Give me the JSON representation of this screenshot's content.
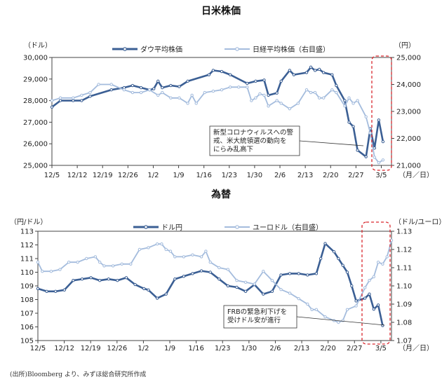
{
  "source_note": "(出所)Bloomberg より、みずほ総合研究所作成",
  "colors": {
    "primary": "#3b5f94",
    "secondary": "#a4bcdd",
    "highlight": "#d9262c",
    "axis": "#444444",
    "callout_bg": "#ffffff"
  },
  "x_axis_suffix": "（月／日）",
  "chart_data": [
    {
      "type": "line",
      "title": "日米株価",
      "left_unit": "（ドル）",
      "right_unit": "（円）",
      "ylim_left": [
        25000,
        30000
      ],
      "ylim_right": [
        21000,
        25000
      ],
      "yticks_left": [
        "25,000",
        "26,000",
        "27,000",
        "28,000",
        "29,000",
        "30,000"
      ],
      "yticks_right": [
        "21,000",
        "22,000",
        "23,000",
        "24,000",
        "25,000"
      ],
      "x_ticks": [
        "12/5",
        "12/12",
        "12/19",
        "12/26",
        "1/2",
        "1/9",
        "1/16",
        "1/23",
        "1/30",
        "2/6",
        "2/13",
        "2/20",
        "2/27",
        "3/5"
      ],
      "x_tick_index": [
        0,
        5,
        10,
        15,
        20,
        25,
        30,
        35,
        40,
        45,
        50,
        55,
        60,
        65
      ],
      "n_points": 66,
      "series": [
        {
          "name": "ダウ平均株価",
          "axis": "left",
          "points": [
            [
              0,
              27700
            ],
            [
              2,
              28000
            ],
            [
              5,
              28000
            ],
            [
              7,
              28000
            ],
            [
              9,
              28200
            ],
            [
              14,
              28500
            ],
            [
              17,
              28600
            ],
            [
              19,
              28700
            ],
            [
              21,
              28600
            ],
            [
              23,
              28500
            ],
            [
              24,
              28550
            ],
            [
              25,
              28900
            ],
            [
              26,
              28600
            ],
            [
              28,
              28700
            ],
            [
              30,
              28650
            ],
            [
              32,
              28900
            ],
            [
              37,
              29200
            ],
            [
              38,
              29400
            ],
            [
              40,
              29350
            ],
            [
              42,
              29200
            ],
            [
              46,
              28800
            ],
            [
              48,
              28900
            ],
            [
              50,
              28950
            ],
            [
              51,
              28250
            ],
            [
              53,
              28350
            ],
            [
              54,
              28900
            ],
            [
              56,
              29400
            ],
            [
              57,
              29200
            ],
            [
              60,
              29300
            ],
            [
              61,
              29550
            ],
            [
              62,
              29400
            ],
            [
              63,
              29450
            ],
            [
              64,
              29300
            ],
            [
              66,
              29200
            ],
            [
              67,
              28700
            ],
            [
              69,
              28000
            ],
            [
              70,
              27000
            ],
            [
              71,
              26800
            ],
            [
              72,
              25700
            ],
            [
              74,
              25400
            ],
            [
              75,
              26700
            ],
            [
              76,
              25800
            ],
            [
              77,
              27100
            ],
            [
              78,
              26100
            ]
          ],
          "x_max": 78
        },
        {
          "name": "日経平均株価（右目盛）",
          "axis": "right",
          "points": [
            [
              0,
              23400
            ],
            [
              2,
              23500
            ],
            [
              5,
              23500
            ],
            [
              7,
              23600
            ],
            [
              9,
              23700
            ],
            [
              11,
              24000
            ],
            [
              14,
              24000
            ],
            [
              17,
              23800
            ],
            [
              19,
              23700
            ],
            [
              21,
              23700
            ],
            [
              23,
              23800
            ],
            [
              25,
              23600
            ],
            [
              26,
              23700
            ],
            [
              28,
              23500
            ],
            [
              30,
              23500
            ],
            [
              32,
              23300
            ],
            [
              33,
              23600
            ],
            [
              34,
              23300
            ],
            [
              36,
              23700
            ],
            [
              38,
              23750
            ],
            [
              40,
              23800
            ],
            [
              42,
              23900
            ],
            [
              44,
              23900
            ],
            [
              46,
              23900
            ],
            [
              47,
              23400
            ],
            [
              48,
              23500
            ],
            [
              49,
              23650
            ],
            [
              50,
              23600
            ],
            [
              51,
              23200
            ],
            [
              53,
              23400
            ],
            [
              54,
              23300
            ],
            [
              56,
              23100
            ],
            [
              58,
              23300
            ],
            [
              60,
              23800
            ],
            [
              61,
              23700
            ],
            [
              62,
              23700
            ],
            [
              63,
              23500
            ],
            [
              64,
              23500
            ],
            [
              66,
              23800
            ],
            [
              67,
              23700
            ],
            [
              69,
              23200
            ],
            [
              70,
              23500
            ],
            [
              71,
              23300
            ],
            [
              72,
              23400
            ],
            [
              74,
              22800
            ],
            [
              75,
              22200
            ],
            [
              76,
              21300
            ],
            [
              77,
              21100
            ],
            [
              78,
              21200
            ]
          ],
          "x_max": 78
        }
      ],
      "annotation": {
        "lines": [
          "新型コロナウィルスへの警",
          "戒、米大統領選の動向を",
          "にらみ乱高下"
        ]
      }
    },
    {
      "type": "line",
      "title": "為替",
      "left_unit": "（円/ドル）",
      "right_unit": "（ドル/ユーロ）",
      "ylim_left": [
        105,
        113
      ],
      "ylim_right": [
        1.07,
        1.13
      ],
      "yticks_left": [
        "105",
        "106",
        "107",
        "108",
        "109",
        "110",
        "111",
        "112",
        "113"
      ],
      "yticks_right": [
        "1.07",
        "1.08",
        "1.09",
        "1.10",
        "1.11",
        "1.12",
        "1.13"
      ],
      "x_ticks": [
        "12/5",
        "12/12",
        "12/19",
        "12/26",
        "1/2",
        "1/9",
        "1/16",
        "1/23",
        "1/30",
        "2/6",
        "2/13",
        "2/20",
        "2/27",
        "3/5"
      ],
      "x_tick_index": [
        0,
        5,
        10,
        15,
        20,
        25,
        30,
        35,
        40,
        45,
        50,
        55,
        60,
        65
      ],
      "series": [
        {
          "name": "ドル円",
          "axis": "left",
          "points": [
            [
              0,
              108.8
            ],
            [
              2,
              108.6
            ],
            [
              4,
              108.6
            ],
            [
              6,
              108.7
            ],
            [
              8,
              109.4
            ],
            [
              10,
              109.5
            ],
            [
              12,
              109.6
            ],
            [
              14,
              109.4
            ],
            [
              16,
              109.5
            ],
            [
              18,
              109.4
            ],
            [
              20,
              109.6
            ],
            [
              22,
              109.1
            ],
            [
              24,
              108.8
            ],
            [
              25,
              108.7
            ],
            [
              27,
              108.1
            ],
            [
              29,
              108.4
            ],
            [
              31,
              109.5
            ],
            [
              33,
              109.7
            ],
            [
              35,
              109.9
            ],
            [
              37,
              110.1
            ],
            [
              39,
              110.0
            ],
            [
              41,
              109.5
            ],
            [
              43,
              109.0
            ],
            [
              45,
              108.9
            ],
            [
              47,
              108.6
            ],
            [
              49,
              109.1
            ],
            [
              51,
              108.4
            ],
            [
              53,
              108.6
            ],
            [
              55,
              109.8
            ],
            [
              57,
              109.9
            ],
            [
              59,
              109.9
            ],
            [
              61,
              109.8
            ],
            [
              63,
              109.9
            ],
            [
              64,
              111.0
            ],
            [
              65,
              112.1
            ],
            [
              67,
              111.5
            ],
            [
              68,
              111.0
            ],
            [
              69,
              110.5
            ],
            [
              70,
              110.0
            ],
            [
              71,
              109.0
            ],
            [
              72,
              107.9
            ],
            [
              74,
              108.1
            ],
            [
              75,
              108.4
            ],
            [
              76,
              107.3
            ],
            [
              77,
              107.6
            ],
            [
              78,
              106.1
            ]
          ],
          "x_max": 78
        },
        {
          "name": "ユーロドル（右目盛）",
          "axis": "right",
          "points": [
            [
              0,
              1.113
            ],
            [
              1,
              1.108
            ],
            [
              3,
              1.108
            ],
            [
              5,
              1.109
            ],
            [
              7,
              1.113
            ],
            [
              9,
              1.113
            ],
            [
              11,
              1.115
            ],
            [
              13,
              1.116
            ],
            [
              14,
              1.113
            ],
            [
              15,
              1.111
            ],
            [
              17,
              1.111
            ],
            [
              19,
              1.112
            ],
            [
              21,
              1.112
            ],
            [
              23,
              1.12
            ],
            [
              25,
              1.121
            ],
            [
              27,
              1.123
            ],
            [
              28,
              1.123
            ],
            [
              29,
              1.12
            ],
            [
              30,
              1.119
            ],
            [
              31,
              1.116
            ],
            [
              33,
              1.116
            ],
            [
              35,
              1.117
            ],
            [
              37,
              1.116
            ],
            [
              38,
              1.119
            ],
            [
              39,
              1.113
            ],
            [
              41,
              1.11
            ],
            [
              43,
              1.109
            ],
            [
              45,
              1.103
            ],
            [
              47,
              1.102
            ],
            [
              49,
              1.101
            ],
            [
              51,
              1.108
            ],
            [
              53,
              1.103
            ],
            [
              55,
              1.098
            ],
            [
              57,
              1.096
            ],
            [
              59,
              1.093
            ],
            [
              61,
              1.09
            ],
            [
              62,
              1.087
            ],
            [
              63,
              1.087
            ],
            [
              65,
              1.083
            ],
            [
              67,
              1.081
            ],
            [
              68,
              1.08
            ],
            [
              69,
              1.081
            ],
            [
              70,
              1.087
            ],
            [
              72,
              1.089
            ],
            [
              74,
              1.099
            ],
            [
              75,
              1.103
            ],
            [
              76,
              1.105
            ],
            [
              77,
              1.113
            ],
            [
              78,
              1.112
            ],
            [
              79,
              1.116
            ],
            [
              80,
              1.125
            ]
          ],
          "x_max": 80
        }
      ],
      "annotation": {
        "lines": [
          "FRBの緊急利下げを",
          "受けドル安が進行"
        ]
      }
    }
  ]
}
